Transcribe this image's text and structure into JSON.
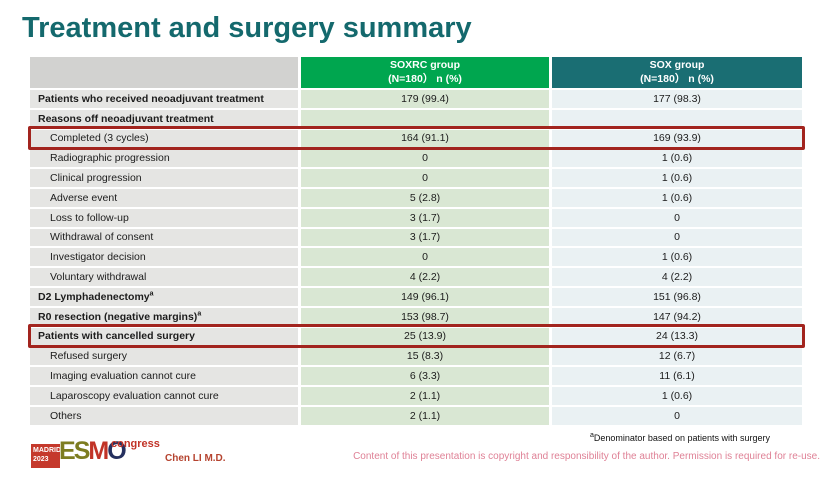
{
  "slide": {
    "title": "Treatment and surgery summary"
  },
  "table": {
    "header": {
      "groups": [
        {
          "name": "SOXRC group",
          "n": "(N=180）  n (%)"
        },
        {
          "name": "SOX group",
          "n": "(N=180）  n (%)"
        }
      ]
    },
    "rows": [
      {
        "label": "Patients who received neoadjuvant treatment",
        "sup": "",
        "bold": true,
        "highlight": false,
        "soxrc": "179 (99.4)",
        "sox": "177 (98.3)"
      },
      {
        "label": "Reasons off neoadjuvant treatment",
        "sup": "",
        "bold": true,
        "highlight": false,
        "soxrc": "",
        "sox": ""
      },
      {
        "label": "Completed (3 cycles)",
        "sup": "",
        "bold": false,
        "highlight": true,
        "soxrc": "164 (91.1)",
        "sox": "169 (93.9)"
      },
      {
        "label": "Radiographic progression",
        "sup": "",
        "bold": false,
        "highlight": false,
        "soxrc": "0",
        "sox": "1 (0.6)"
      },
      {
        "label": "Clinical progression",
        "sup": "",
        "bold": false,
        "highlight": false,
        "soxrc": "0",
        "sox": "1 (0.6)"
      },
      {
        "label": "Adverse event",
        "sup": "",
        "bold": false,
        "highlight": false,
        "soxrc": "5 (2.8)",
        "sox": "1 (0.6)"
      },
      {
        "label": "Loss to follow-up",
        "sup": "",
        "bold": false,
        "highlight": false,
        "soxrc": "3 (1.7)",
        "sox": "0"
      },
      {
        "label": "Withdrawal of consent",
        "sup": "",
        "bold": false,
        "highlight": false,
        "soxrc": "3 (1.7)",
        "sox": "0"
      },
      {
        "label": "Investigator decision",
        "sup": "",
        "bold": false,
        "highlight": false,
        "soxrc": "0",
        "sox": "1 (0.6)"
      },
      {
        "label": "Voluntary withdrawal",
        "sup": "",
        "bold": false,
        "highlight": false,
        "soxrc": "4 (2.2)",
        "sox": "4 (2.2)"
      },
      {
        "label": "D2 Lymphadenectomy",
        "sup": "a",
        "bold": true,
        "highlight": false,
        "soxrc": "149 (96.1)",
        "sox": "151 (96.8)"
      },
      {
        "label": "R0 resection (negative margins)",
        "sup": "a",
        "bold": true,
        "highlight": false,
        "soxrc": "153 (98.7)",
        "sox": "147 (94.2)"
      },
      {
        "label": "Patients with cancelled surgery",
        "sup": "",
        "bold": true,
        "highlight": true,
        "soxrc": "25 (13.9)",
        "sox": "24 (13.3)"
      },
      {
        "label": "Refused surgery",
        "sup": "",
        "bold": false,
        "highlight": false,
        "soxrc": "15 (8.3)",
        "sox": "12 (6.7)"
      },
      {
        "label": "Imaging evaluation cannot cure",
        "sup": "",
        "bold": false,
        "highlight": false,
        "soxrc": "6 (3.3)",
        "sox": "11 (6.1)"
      },
      {
        "label": "Laparoscopy evaluation cannot cure",
        "sup": "",
        "bold": false,
        "highlight": false,
        "soxrc": "2 (1.1)",
        "sox": "1 (0.6)"
      },
      {
        "label": "Others",
        "sup": "",
        "bold": false,
        "highlight": false,
        "soxrc": "2 (1.1)",
        "sox": "0"
      }
    ]
  },
  "footer": {
    "logo": {
      "city": "MADRID",
      "year": "2023",
      "congress": "congress",
      "letters": [
        {
          "ch": "E",
          "color": "#7d7d21"
        },
        {
          "ch": "S",
          "color": "#7d7d21"
        },
        {
          "ch": "M",
          "color": "#c13327"
        },
        {
          "ch": "O",
          "color": "#25305f"
        }
      ]
    },
    "author": "Chen LI M.D.",
    "footnote": {
      "sup": "a",
      "text": "Denominator based on patients with surgery"
    },
    "copyright": "Content of this presentation is copyright and responsibility of the author. Permission is required for re-use."
  },
  "colors": {
    "title": "#14696d",
    "green_header": "#00a64f",
    "teal_header": "#1a6e73",
    "gray_header": "#d2d2d0",
    "label_cell": "#e5e5e3",
    "soxrc_cell": "#d9e7d3",
    "sox_cell": "#eaf1f3",
    "highlight_border": "#a2241e"
  }
}
